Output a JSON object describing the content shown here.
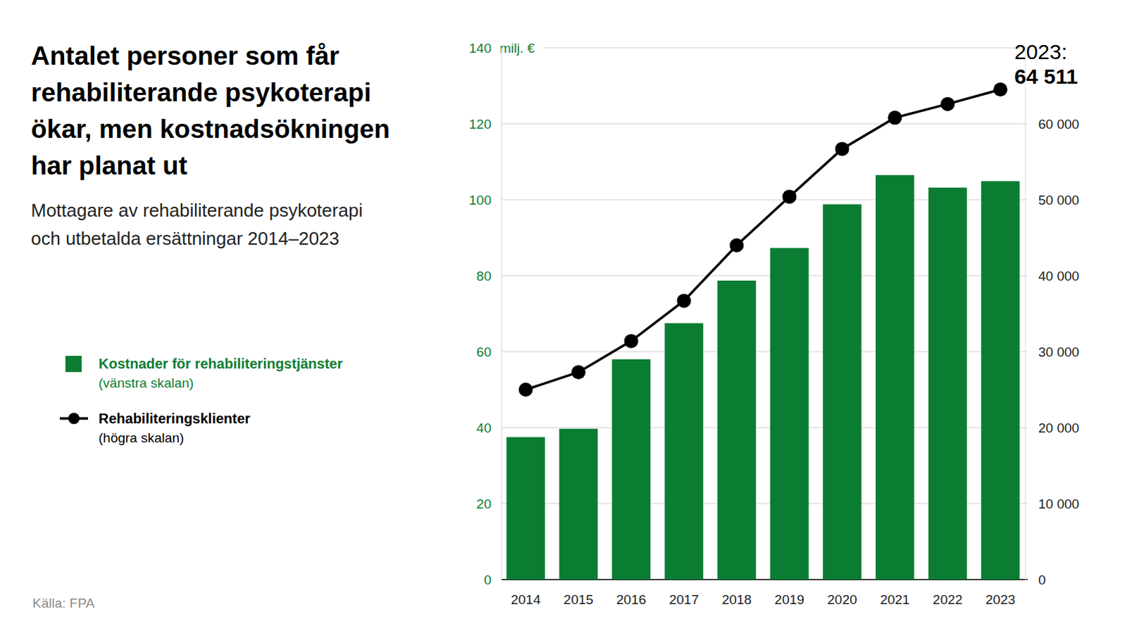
{
  "chart_data": {
    "type": "bar",
    "title": "Antalet personer som får\nrehabiliterande psykoterapi\nökar, men kostnadsökningen\nhar planat ut",
    "subtitle": "Mottagare av rehabiliterande psykoterapi\noch utbetalda ersättningar 2014–2023",
    "source": "Källa: FPA",
    "ylabel": "milj. €",
    "categories": [
      "2014",
      "2015",
      "2016",
      "2017",
      "2018",
      "2019",
      "2020",
      "2021",
      "2022",
      "2023"
    ],
    "series": [
      {
        "name": "Kostnader för rehabiliteringstjänster",
        "legend_note": "(vänstra skalan)",
        "type": "bar",
        "color": "#0b7d32",
        "values": [
          37.5,
          39.7,
          58.0,
          67.5,
          78.7,
          87.3,
          98.8,
          106.5,
          103.2,
          104.9
        ]
      },
      {
        "name": "Rehabiliteringsklienter",
        "legend_note": "(högra skalan)",
        "type": "line",
        "axis": "y2",
        "color": "#000000",
        "marker": "circle",
        "line_style": "solid",
        "values": [
          25000,
          27300,
          31400,
          36700,
          44000,
          50400,
          56700,
          60800,
          62600,
          64511
        ]
      }
    ],
    "annotations": [
      "2023:",
      "64 511"
    ],
    "ylim": [
      0,
      140
    ],
    "yticks": [
      0,
      20,
      40,
      60,
      80,
      100,
      120,
      140
    ],
    "y2lim": [
      0,
      70000
    ],
    "y2ticks": [
      0,
      {
        "value": 10000,
        "label": "10 000"
      },
      {
        "value": 20000,
        "label": "20 000"
      },
      {
        "value": 30000,
        "label": "30 000"
      },
      {
        "value": 40000,
        "label": "40 000"
      },
      {
        "value": 50000,
        "label": "50 000"
      },
      {
        "value": 60000,
        "label": "60 000"
      }
    ],
    "grid": true,
    "legend": "left"
  }
}
